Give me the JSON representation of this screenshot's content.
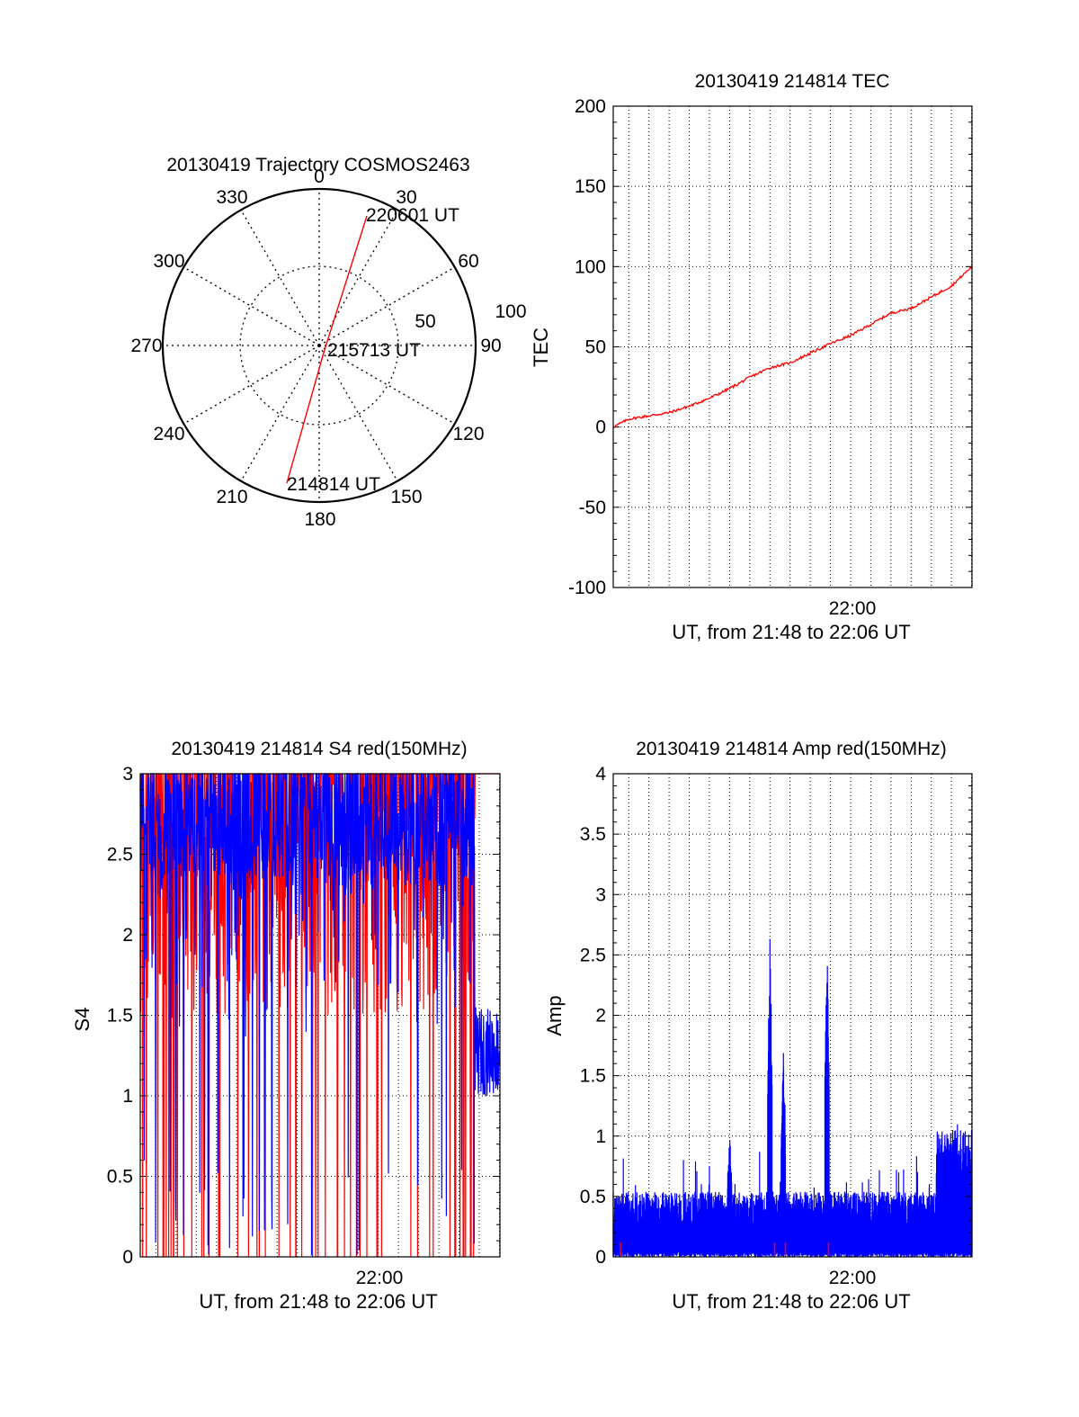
{
  "chart_data": [
    {
      "type": "polar",
      "title": "20130419 Trajectory COSMOS2463",
      "angle_ticks": [
        "0",
        "30",
        "60",
        "90",
        "120",
        "150",
        "180",
        "210",
        "240",
        "270",
        "300",
        "330"
      ],
      "radial_labels": [
        "50",
        "100"
      ],
      "rlim": [
        0,
        100
      ],
      "series": [
        {
          "color": "#ff0000",
          "points": [
            {
              "azimuth_deg": 204,
              "elevation_deg": 0
            },
            {
              "azimuth_deg": 15,
              "elevation_deg": 1
            },
            {
              "azimuth_deg": 23,
              "elevation_deg": 0
            }
          ]
        }
      ],
      "annotations": [
        "214814 UT",
        "215713 UT",
        "220601 UT"
      ]
    },
    {
      "type": "line",
      "title": "20130419 214814 TEC",
      "xlabel": "UT, from 21:48 to 22:06 UT",
      "ylabel": "TEC",
      "xlim_minutes_ut": [
        1308.23,
        1326.02
      ],
      "ylim": [
        -100,
        200
      ],
      "yticks": [
        "-100",
        "-50",
        "0",
        "50",
        "100",
        "150",
        "200"
      ],
      "xticks": [
        "22:00"
      ],
      "grid": true,
      "series": [
        {
          "color": "#ff0000",
          "x_ut": [
            "21:48:14",
            "21:49",
            "21:50",
            "21:51",
            "21:52",
            "21:53",
            "21:54",
            "21:55",
            "21:56",
            "21:57",
            "21:58",
            "21:59",
            "22:00",
            "22:01",
            "22:02",
            "22:03",
            "22:04",
            "22:05",
            "22:06:01"
          ],
          "y": [
            0,
            5,
            7,
            9,
            13,
            18,
            24,
            31,
            37,
            40,
            46,
            52,
            57,
            64,
            71,
            74,
            81,
            88,
            100
          ]
        }
      ]
    },
    {
      "type": "line",
      "title": "20130419 214814 S4 red(150MHz)",
      "xlabel": "UT, from 21:48 to 22:06 UT",
      "ylabel": "S4",
      "xlim_minutes_ut": [
        1308.23,
        1326.02
      ],
      "ylim": [
        0,
        3
      ],
      "yticks": [
        "0",
        "0.5",
        "1",
        "1.5",
        "2",
        "2.5",
        "3"
      ],
      "xticks": [
        "22:00"
      ],
      "grid": true,
      "series": [
        {
          "color": "#ff0000",
          "note_style": "spiky"
        },
        {
          "color": "#0000ff",
          "note_style": "spiky"
        }
      ]
    },
    {
      "type": "line",
      "title": "20130419 214814 Amp red(150MHz)",
      "xlabel": "UT, from 21:48 to 22:06 UT",
      "ylabel": "Amp",
      "xlim_minutes_ut": [
        1308.23,
        1326.02
      ],
      "ylim": [
        0,
        4
      ],
      "yticks": [
        "0",
        "0.5",
        "1",
        "1.5",
        "2",
        "2.5",
        "3",
        "3.5",
        "4"
      ],
      "xticks": [
        "22:00"
      ],
      "grid": true,
      "series": [
        {
          "color": "#0000ff",
          "peaks": [
            {
              "x_ut": "21:56",
              "y": 2.72
            },
            {
              "x_ut": "21:56:40",
              "y": 1.8
            },
            {
              "x_ut": "21:58:50",
              "y": 2.62
            },
            {
              "x_ut": "21:54",
              "y": 1.08
            }
          ]
        },
        {
          "color": "#ff0000"
        }
      ]
    }
  ]
}
